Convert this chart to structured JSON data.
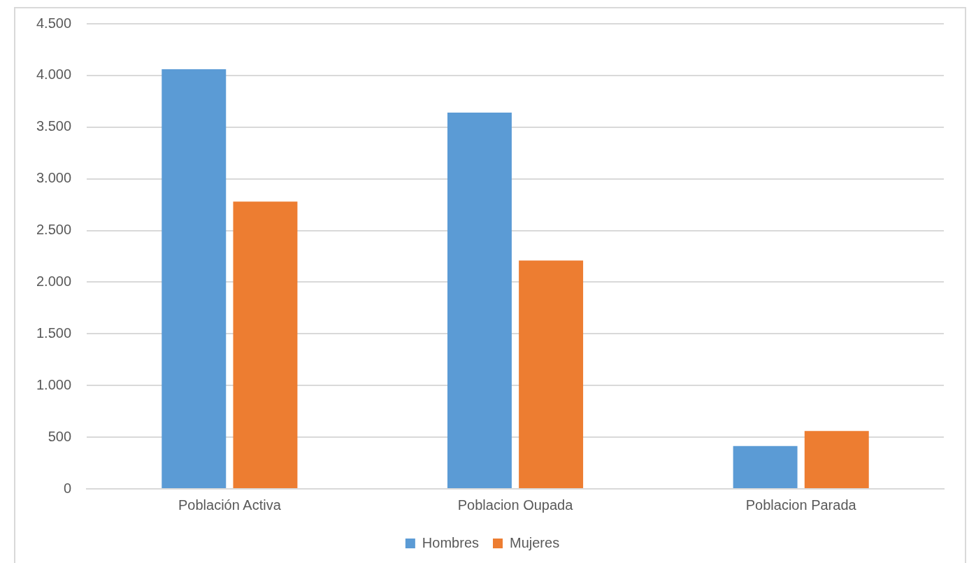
{
  "chart_data": {
    "type": "bar",
    "categories": [
      "Población Activa",
      "Poblacion Oupada",
      "Poblacion Parada"
    ],
    "series": [
      {
        "name": "Hombres",
        "color": "#5b9bd5",
        "values": [
          4060,
          3640,
          415
        ]
      },
      {
        "name": "Mujeres",
        "color": "#ed7d31",
        "values": [
          2780,
          2210,
          560
        ]
      }
    ],
    "ylim": [
      0,
      4500
    ],
    "yticks": [
      0,
      {
        "value": 500,
        "label": "500"
      },
      {
        "value": 1000,
        "label": "1.000"
      },
      {
        "value": 1500,
        "label": "1.500"
      },
      {
        "value": 2000,
        "label": "2.000"
      },
      {
        "value": 2500,
        "label": "2.500"
      },
      {
        "value": 3000,
        "label": "3.000"
      },
      {
        "value": 3500,
        "label": "3.500"
      },
      {
        "value": 4000,
        "label": "4.000"
      },
      {
        "value": 4500,
        "label": "4.500"
      }
    ],
    "grid": "y",
    "legend": "bottom"
  }
}
